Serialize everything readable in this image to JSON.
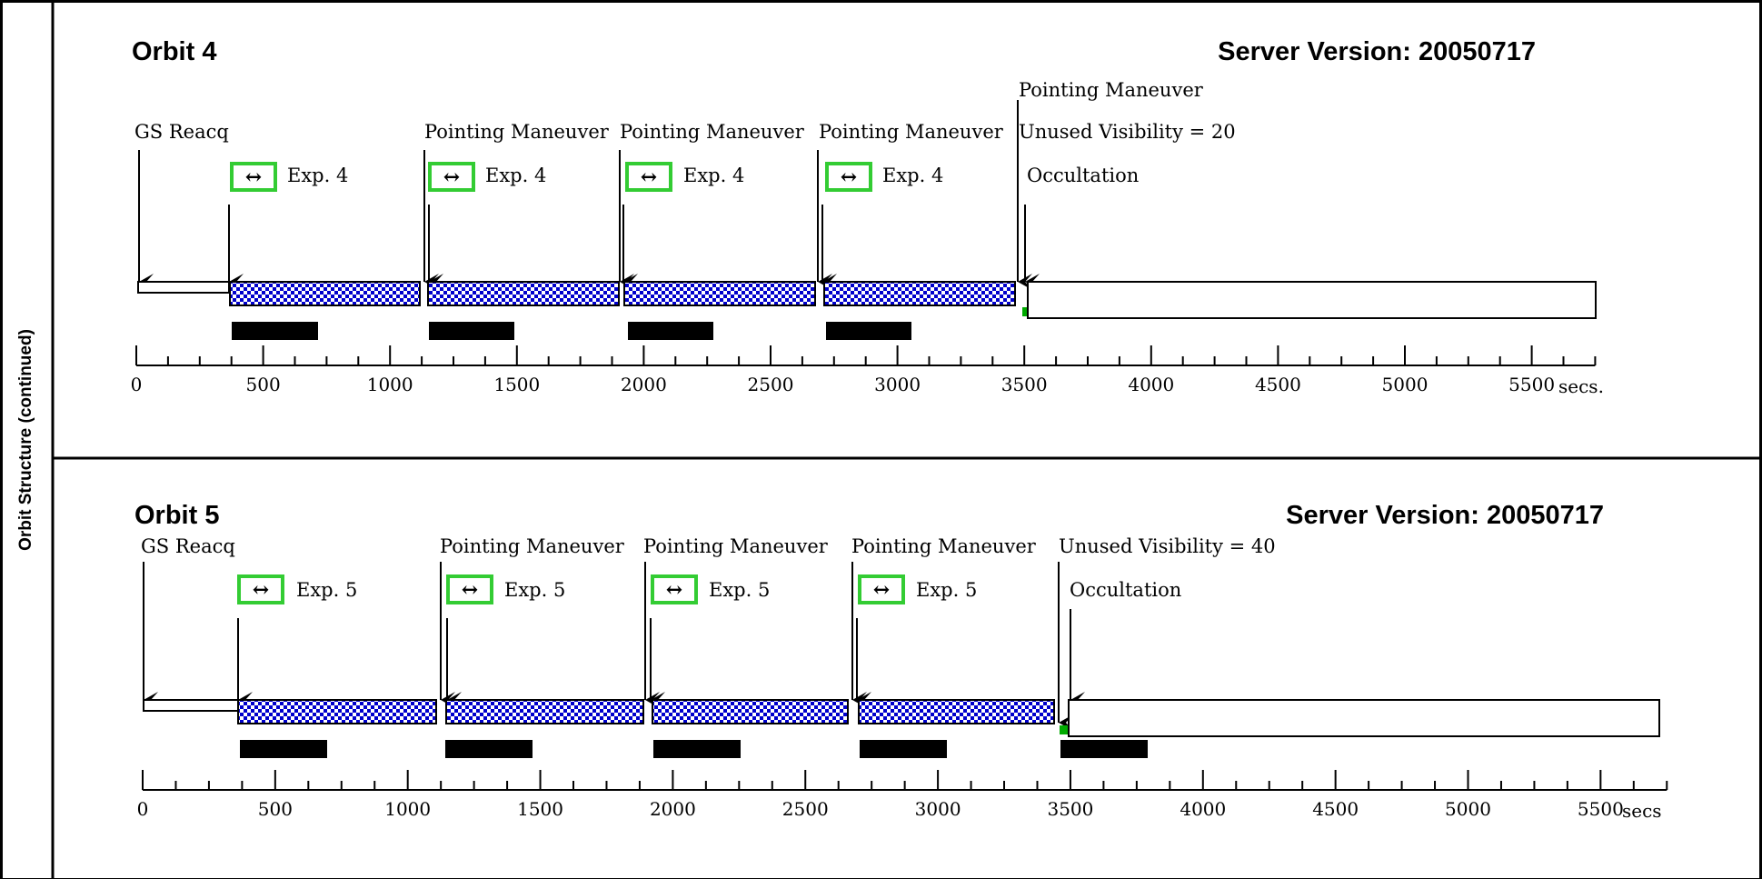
{
  "side_label": "Orbit Structure (continued)",
  "colors": {
    "exposure_blue": "#0000cc",
    "icon_green": "#33cc33",
    "maneuver_green": "#00aa00",
    "line": "#000000"
  },
  "axis_unit": "secs.",
  "axis_unit_orbit5": "secs",
  "exp_icon": "↔",
  "panels": [
    {
      "title": "Orbit 4",
      "server_version": "Server Version: 20050717",
      "labels": {
        "gs_reacq": "GS Reacq",
        "pointing_1": "Pointing Maneuver",
        "pointing_2": "Pointing Maneuver",
        "pointing_3": "Pointing Maneuver",
        "pointing_top": "Pointing Maneuver",
        "unused": "Unused Visibility = 20",
        "occultation": "Occultation"
      },
      "exposures": [
        "Exp. 4",
        "Exp. 4",
        "Exp. 4",
        "Exp. 4"
      ],
      "ticks": [
        "0",
        "500",
        "1000",
        "1500",
        "2000",
        "2500",
        "3000",
        "3500",
        "4000",
        "4500",
        "5000",
        "5500"
      ]
    },
    {
      "title": "Orbit 5",
      "server_version": "Server Version: 20050717",
      "labels": {
        "gs_reacq": "GS Reacq",
        "pointing_1": "Pointing Maneuver",
        "pointing_2": "Pointing Maneuver",
        "pointing_3": "Pointing Maneuver",
        "unused": "Unused Visibility = 40",
        "occultation": "Occultation"
      },
      "exposures": [
        "Exp. 5",
        "Exp. 5",
        "Exp. 5",
        "Exp. 5"
      ],
      "ticks": [
        "0",
        "500",
        "1000",
        "1500",
        "2000",
        "2500",
        "3000",
        "3500",
        "4000",
        "4500",
        "5000",
        "5500"
      ]
    }
  ]
}
